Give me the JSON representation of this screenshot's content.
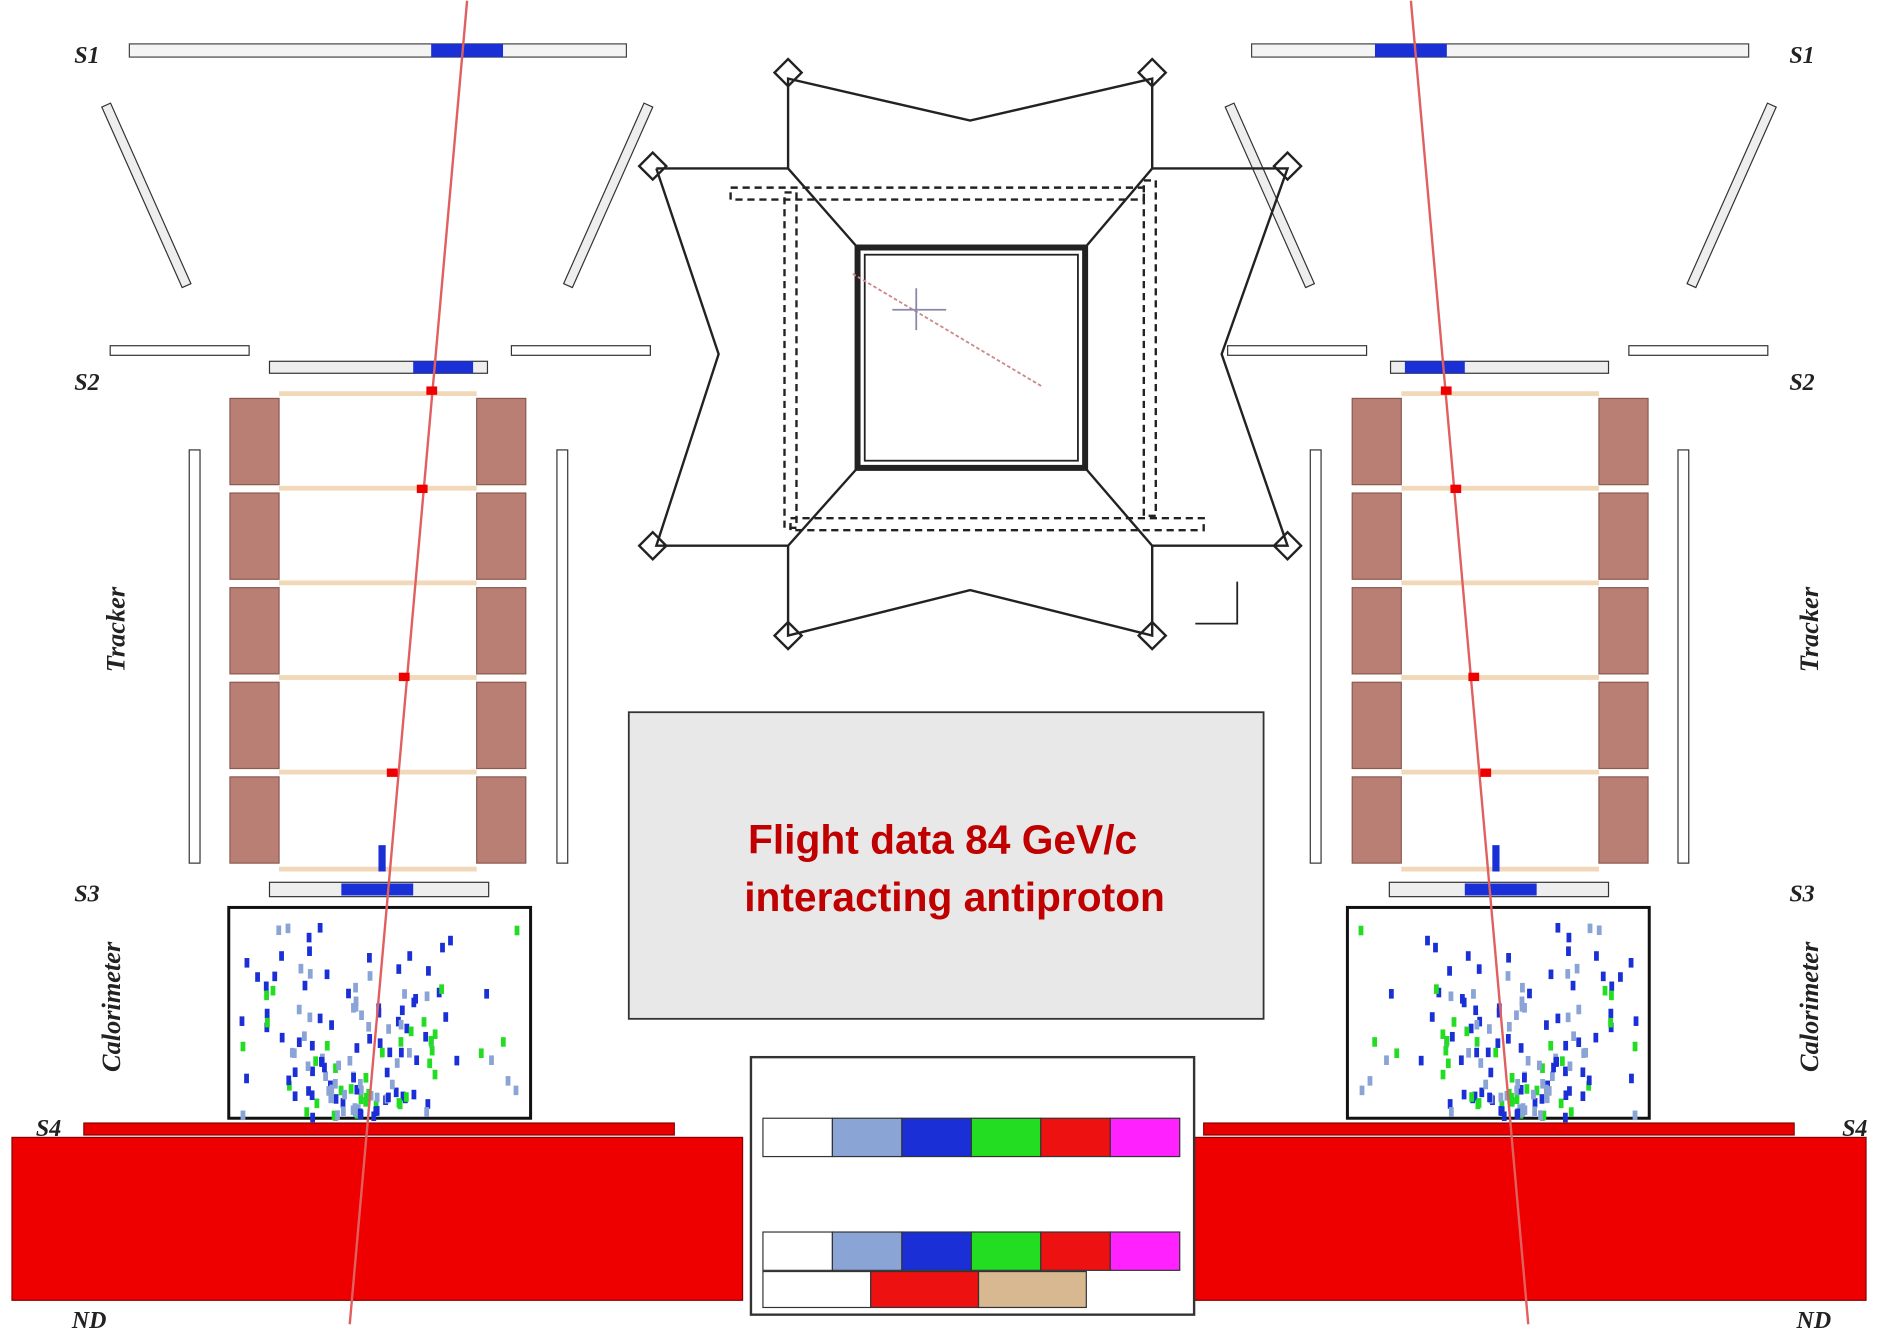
{
  "labels": {
    "left": {
      "s1": "S1",
      "s2": "S2",
      "s3": "S3",
      "s4": "S4",
      "nd": "ND",
      "tracker": "Tracker",
      "calorimeter": "Calorimeter"
    },
    "right": {
      "s1": "S1",
      "s2": "S2",
      "s3": "S3",
      "s4": "S4",
      "nd": "ND",
      "tracker": "Tracker",
      "calorimeter": "Calorimeter"
    }
  },
  "headline": {
    "line1": "Flight data  84 GeV/c",
    "line2": "interacting antiproton"
  }
}
